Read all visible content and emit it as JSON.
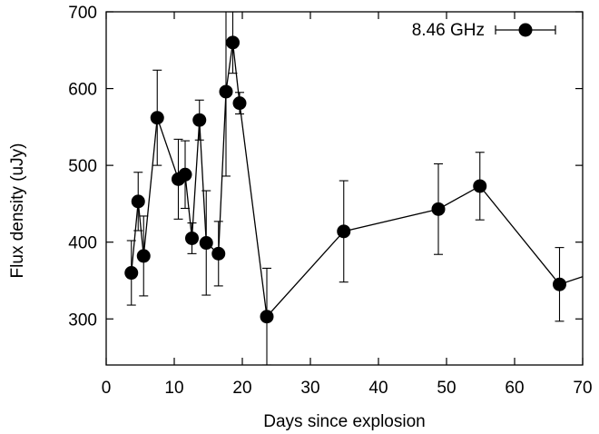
{
  "chart_data": {
    "type": "scatter",
    "title": "",
    "xlabel": "Days since explosion",
    "ylabel": "Flux density (uJy)",
    "xlim": [
      0,
      70
    ],
    "ylim": [
      240,
      700
    ],
    "xticks": [
      0,
      10,
      20,
      30,
      40,
      50,
      60,
      70
    ],
    "yticks": [
      300,
      400,
      500,
      600,
      700
    ],
    "xtick_labels": [
      "0",
      "10",
      "20",
      "30",
      "40",
      "50",
      "60",
      "70"
    ],
    "ytick_labels": [
      "300",
      "400",
      "500",
      "600",
      "700"
    ],
    "grid": false,
    "legend_position": "top-right",
    "series": [
      {
        "name": "8.46 GHz",
        "style": "line-with-markers-and-error-bars",
        "color": "#000000",
        "points": [
          {
            "x": 3.7,
            "y": 360,
            "err": 42
          },
          {
            "x": 4.7,
            "y": 453,
            "err": 38
          },
          {
            "x": 5.5,
            "y": 382,
            "err": 52
          },
          {
            "x": 7.5,
            "y": 562,
            "err": 62
          },
          {
            "x": 10.6,
            "y": 482,
            "err": 52
          },
          {
            "x": 11.6,
            "y": 488,
            "err": 44
          },
          {
            "x": 12.6,
            "y": 405,
            "err": 20
          },
          {
            "x": 13.7,
            "y": 559,
            "err": 26
          },
          {
            "x": 14.7,
            "y": 399,
            "err": 68
          },
          {
            "x": 16.5,
            "y": 385,
            "err": 42
          },
          {
            "x": 17.6,
            "y": 596,
            "err": 110
          },
          {
            "x": 18.6,
            "y": 660,
            "err": 40
          },
          {
            "x": 19.6,
            "y": 581,
            "err": 14
          },
          {
            "x": 23.6,
            "y": 303,
            "err": 63
          },
          {
            "x": 34.9,
            "y": 414,
            "err": 66
          },
          {
            "x": 48.8,
            "y": 443,
            "err": 59
          },
          {
            "x": 54.9,
            "y": 473,
            "err": 44
          },
          {
            "x": 66.6,
            "y": 345,
            "err": 48
          },
          {
            "x": 71.0,
            "y": 358,
            "err": 0
          }
        ]
      }
    ]
  }
}
